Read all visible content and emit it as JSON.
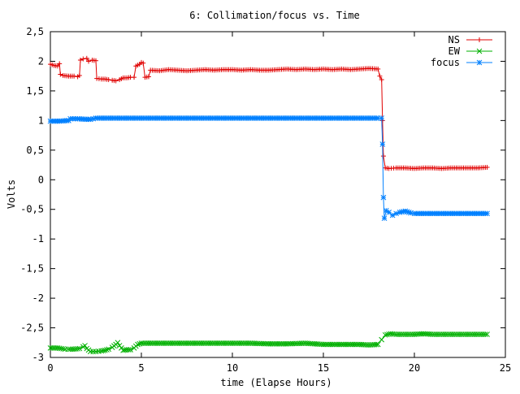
{
  "chart_data": {
    "type": "line",
    "title": "6: Collimation/focus vs. Time",
    "xlabel": "time (Elapse Hours)",
    "ylabel": "Volts",
    "xlim": [
      0,
      25
    ],
    "ylim": [
      -3,
      2.5
    ],
    "x_ticks": [
      0,
      5,
      10,
      15,
      20,
      25
    ],
    "y_ticks": [
      2.5,
      2,
      1.5,
      1,
      0.5,
      0,
      -0.5,
      -1,
      -1.5,
      -2,
      -2.5,
      -3
    ],
    "x_tick_labels": [
      "0",
      "5",
      "10",
      "15",
      "20",
      "25"
    ],
    "y_tick_labels": [
      "2,5",
      "2",
      "1,5",
      "1",
      "0,5",
      "0",
      "-0,5",
      "-1",
      "-1,5",
      "-2",
      "-2,5",
      "-3"
    ],
    "grid": false,
    "legend_position": "top-right",
    "series": [
      {
        "name": "NS",
        "color": "#e00000",
        "marker": "plus",
        "points": [
          [
            0.0,
            1.95
          ],
          [
            0.2,
            1.93
          ],
          [
            0.4,
            1.92
          ],
          [
            0.5,
            1.96
          ],
          [
            0.55,
            1.78
          ],
          [
            0.7,
            1.76
          ],
          [
            1.0,
            1.75
          ],
          [
            1.3,
            1.75
          ],
          [
            1.5,
            1.74
          ],
          [
            1.6,
            1.76
          ],
          [
            1.65,
            2.02
          ],
          [
            1.8,
            2.04
          ],
          [
            2.0,
            2.05
          ],
          [
            2.1,
            2.0
          ],
          [
            2.3,
            2.02
          ],
          [
            2.5,
            2.01
          ],
          [
            2.55,
            1.71
          ],
          [
            2.8,
            1.7
          ],
          [
            3.0,
            1.7
          ],
          [
            3.2,
            1.69
          ],
          [
            3.4,
            1.68
          ],
          [
            3.6,
            1.67
          ],
          [
            3.8,
            1.69
          ],
          [
            4.0,
            1.72
          ],
          [
            4.2,
            1.72
          ],
          [
            4.4,
            1.73
          ],
          [
            4.6,
            1.73
          ],
          [
            4.7,
            1.92
          ],
          [
            4.9,
            1.95
          ],
          [
            5.0,
            1.98
          ],
          [
            5.1,
            1.97
          ],
          [
            5.2,
            1.73
          ],
          [
            5.4,
            1.74
          ],
          [
            5.5,
            1.85
          ],
          [
            6.0,
            1.84
          ],
          [
            6.5,
            1.86
          ],
          [
            7.0,
            1.85
          ],
          [
            7.5,
            1.84
          ],
          [
            8.0,
            1.85
          ],
          [
            8.5,
            1.86
          ],
          [
            9.0,
            1.85
          ],
          [
            9.5,
            1.86
          ],
          [
            10.0,
            1.86
          ],
          [
            10.5,
            1.85
          ],
          [
            11.0,
            1.86
          ],
          [
            11.5,
            1.85
          ],
          [
            12.0,
            1.85
          ],
          [
            12.5,
            1.86
          ],
          [
            13.0,
            1.87
          ],
          [
            13.5,
            1.86
          ],
          [
            14.0,
            1.87
          ],
          [
            14.5,
            1.86
          ],
          [
            15.0,
            1.87
          ],
          [
            15.5,
            1.86
          ],
          [
            16.0,
            1.87
          ],
          [
            16.5,
            1.86
          ],
          [
            17.0,
            1.87
          ],
          [
            17.5,
            1.88
          ],
          [
            18.0,
            1.87
          ],
          [
            18.1,
            1.75
          ],
          [
            18.2,
            1.69
          ],
          [
            18.25,
            1.0
          ],
          [
            18.3,
            0.4
          ],
          [
            18.4,
            0.2
          ],
          [
            18.6,
            0.19
          ],
          [
            19.0,
            0.2
          ],
          [
            19.5,
            0.2
          ],
          [
            20.0,
            0.19
          ],
          [
            20.5,
            0.2
          ],
          [
            21.0,
            0.2
          ],
          [
            21.5,
            0.19
          ],
          [
            22.0,
            0.2
          ],
          [
            22.5,
            0.2
          ],
          [
            23.0,
            0.2
          ],
          [
            23.5,
            0.2
          ],
          [
            24.0,
            0.21
          ]
        ]
      },
      {
        "name": "EW",
        "color": "#00b000",
        "marker": "x",
        "points": [
          [
            0.0,
            -2.84
          ],
          [
            0.4,
            -2.84
          ],
          [
            0.8,
            -2.86
          ],
          [
            1.0,
            -2.86
          ],
          [
            1.3,
            -2.86
          ],
          [
            1.6,
            -2.85
          ],
          [
            1.8,
            -2.82
          ],
          [
            1.9,
            -2.8
          ],
          [
            2.0,
            -2.85
          ],
          [
            2.2,
            -2.9
          ],
          [
            2.5,
            -2.9
          ],
          [
            2.8,
            -2.89
          ],
          [
            3.0,
            -2.88
          ],
          [
            3.2,
            -2.86
          ],
          [
            3.4,
            -2.83
          ],
          [
            3.6,
            -2.78
          ],
          [
            3.7,
            -2.75
          ],
          [
            3.8,
            -2.8
          ],
          [
            4.0,
            -2.88
          ],
          [
            4.2,
            -2.87
          ],
          [
            4.4,
            -2.87
          ],
          [
            4.6,
            -2.84
          ],
          [
            4.8,
            -2.78
          ],
          [
            5.0,
            -2.76
          ],
          [
            5.5,
            -2.76
          ],
          [
            6.0,
            -2.76
          ],
          [
            7.0,
            -2.76
          ],
          [
            8.0,
            -2.76
          ],
          [
            9.0,
            -2.76
          ],
          [
            10.0,
            -2.76
          ],
          [
            11.0,
            -2.76
          ],
          [
            12.0,
            -2.77
          ],
          [
            13.0,
            -2.77
          ],
          [
            14.0,
            -2.76
          ],
          [
            15.0,
            -2.78
          ],
          [
            16.0,
            -2.78
          ],
          [
            17.0,
            -2.78
          ],
          [
            17.5,
            -2.79
          ],
          [
            18.0,
            -2.78
          ],
          [
            18.2,
            -2.7
          ],
          [
            18.4,
            -2.62
          ],
          [
            18.7,
            -2.6
          ],
          [
            19.0,
            -2.61
          ],
          [
            19.5,
            -2.61
          ],
          [
            20.0,
            -2.61
          ],
          [
            20.5,
            -2.6
          ],
          [
            21.0,
            -2.61
          ],
          [
            21.5,
            -2.61
          ],
          [
            22.0,
            -2.61
          ],
          [
            22.5,
            -2.61
          ],
          [
            23.0,
            -2.61
          ],
          [
            23.5,
            -2.61
          ],
          [
            24.0,
            -2.61
          ]
        ]
      },
      {
        "name": "focus",
        "color": "#0080ff",
        "marker": "star",
        "points": [
          [
            0.0,
            0.99
          ],
          [
            0.5,
            0.99
          ],
          [
            1.0,
            1.0
          ],
          [
            1.1,
            1.03
          ],
          [
            1.5,
            1.03
          ],
          [
            2.0,
            1.02
          ],
          [
            2.2,
            1.02
          ],
          [
            2.5,
            1.04
          ],
          [
            3.0,
            1.04
          ],
          [
            4.0,
            1.04
          ],
          [
            5.0,
            1.04
          ],
          [
            6.0,
            1.04
          ],
          [
            7.0,
            1.04
          ],
          [
            8.0,
            1.04
          ],
          [
            9.0,
            1.04
          ],
          [
            10.0,
            1.04
          ],
          [
            11.0,
            1.04
          ],
          [
            12.0,
            1.04
          ],
          [
            13.0,
            1.04
          ],
          [
            14.0,
            1.04
          ],
          [
            15.0,
            1.04
          ],
          [
            16.0,
            1.04
          ],
          [
            17.0,
            1.04
          ],
          [
            18.0,
            1.04
          ],
          [
            18.2,
            1.04
          ],
          [
            18.25,
            0.6
          ],
          [
            18.3,
            -0.3
          ],
          [
            18.35,
            -0.65
          ],
          [
            18.45,
            -0.52
          ],
          [
            18.6,
            -0.55
          ],
          [
            18.8,
            -0.6
          ],
          [
            19.0,
            -0.57
          ],
          [
            19.2,
            -0.55
          ],
          [
            19.5,
            -0.53
          ],
          [
            19.8,
            -0.56
          ],
          [
            20.0,
            -0.57
          ],
          [
            20.5,
            -0.57
          ],
          [
            21.0,
            -0.57
          ],
          [
            21.5,
            -0.57
          ],
          [
            22.0,
            -0.57
          ],
          [
            22.5,
            -0.57
          ],
          [
            23.0,
            -0.57
          ],
          [
            23.5,
            -0.57
          ],
          [
            24.0,
            -0.57
          ]
        ]
      }
    ]
  }
}
